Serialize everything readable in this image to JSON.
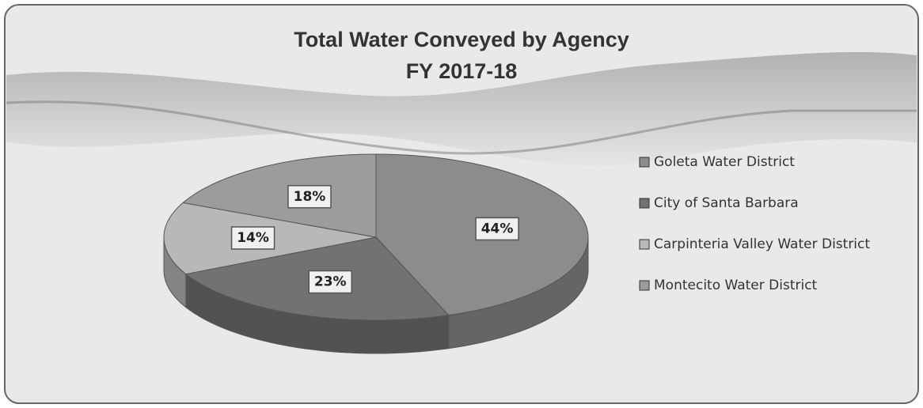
{
  "chart_data": {
    "type": "pie",
    "title": "Total Water Conveyed by Agency",
    "subtitle": "FY 2017-18",
    "categories": [
      "Goleta Water District",
      "City of Santa Barbara",
      "Carpinteria Valley Water District",
      "Montecito Water District"
    ],
    "values": [
      44,
      23,
      14,
      18
    ],
    "value_labels": [
      "44%",
      "23%",
      "14%",
      "18%"
    ],
    "colors": [
      "#8c8c8c",
      "#727272",
      "#b8b8b8",
      "#9c9c9c"
    ]
  }
}
